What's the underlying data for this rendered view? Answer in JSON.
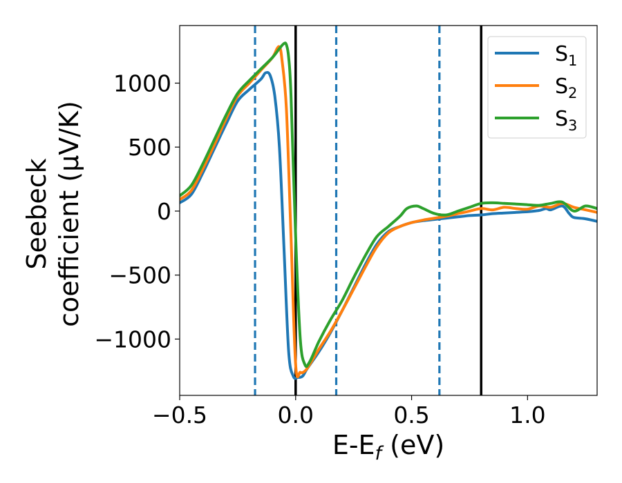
{
  "chart_data": {
    "type": "line",
    "title": "",
    "xlabel": "E-E",
    "xlabel_sub": "f",
    "xlabel_unit": " (eV)",
    "ylabel_line1": "Seebeck",
    "ylabel_line2": "coefficient  (μV/K)",
    "xlim": [
      -0.5,
      1.3
    ],
    "ylim": [
      -1440,
      1450
    ],
    "xticks": [
      -0.5,
      0.0,
      0.5,
      1.0
    ],
    "xtick_labels": [
      "−0.5",
      "0.0",
      "0.5",
      "1.0"
    ],
    "yticks": [
      -1000,
      -500,
      0,
      500,
      1000
    ],
    "ytick_labels": [
      "−1000",
      "−500",
      "0",
      "500",
      "1000"
    ],
    "grid": false,
    "legend_position": "top-right",
    "vlines": [
      {
        "x": -0.175,
        "style": "dashed",
        "color": "#1f77b4"
      },
      {
        "x": 0.0,
        "style": "solid",
        "color": "#000000"
      },
      {
        "x": 0.175,
        "style": "dashed",
        "color": "#1f77b4"
      },
      {
        "x": 0.62,
        "style": "dashed",
        "color": "#1f77b4"
      },
      {
        "x": 0.8,
        "style": "solid",
        "color": "#000000"
      }
    ],
    "series": [
      {
        "name": "S",
        "sub": "1",
        "color": "#1f77b4",
        "points": [
          [
            -0.5,
            65
          ],
          [
            -0.45,
            130
          ],
          [
            -0.4,
            300
          ],
          [
            -0.35,
            490
          ],
          [
            -0.3,
            680
          ],
          [
            -0.25,
            860
          ],
          [
            -0.2,
            950
          ],
          [
            -0.15,
            1030
          ],
          [
            -0.13,
            1080
          ],
          [
            -0.11,
            1060
          ],
          [
            -0.09,
            900
          ],
          [
            -0.07,
            500
          ],
          [
            -0.05,
            -300
          ],
          [
            -0.03,
            -1100
          ],
          [
            -0.01,
            -1290
          ],
          [
            0.01,
            -1300
          ],
          [
            0.03,
            -1290
          ],
          [
            0.05,
            -1230
          ],
          [
            0.1,
            -1100
          ],
          [
            0.15,
            -950
          ],
          [
            0.2,
            -780
          ],
          [
            0.25,
            -600
          ],
          [
            0.3,
            -420
          ],
          [
            0.35,
            -260
          ],
          [
            0.4,
            -160
          ],
          [
            0.45,
            -120
          ],
          [
            0.5,
            -90
          ],
          [
            0.55,
            -75
          ],
          [
            0.6,
            -65
          ],
          [
            0.65,
            -55
          ],
          [
            0.7,
            -45
          ],
          [
            0.75,
            -35
          ],
          [
            0.8,
            -30
          ],
          [
            0.85,
            -20
          ],
          [
            0.9,
            -15
          ],
          [
            0.95,
            -10
          ],
          [
            1.0,
            -5
          ],
          [
            1.05,
            5
          ],
          [
            1.08,
            20
          ],
          [
            1.1,
            10
          ],
          [
            1.15,
            40
          ],
          [
            1.18,
            -20
          ],
          [
            1.2,
            -50
          ],
          [
            1.25,
            -60
          ],
          [
            1.3,
            -80
          ]
        ]
      },
      {
        "name": "S",
        "sub": "2",
        "color": "#ff7f0e",
        "points": [
          [
            -0.5,
            90
          ],
          [
            -0.45,
            160
          ],
          [
            -0.4,
            330
          ],
          [
            -0.35,
            520
          ],
          [
            -0.3,
            720
          ],
          [
            -0.25,
            900
          ],
          [
            -0.2,
            1000
          ],
          [
            -0.15,
            1100
          ],
          [
            -0.1,
            1200
          ],
          [
            -0.08,
            1270
          ],
          [
            -0.07,
            1280
          ],
          [
            -0.06,
            1200
          ],
          [
            -0.04,
            800
          ],
          [
            -0.02,
            -200
          ],
          [
            0.0,
            -1200
          ],
          [
            0.02,
            -1260
          ],
          [
            0.04,
            -1250
          ],
          [
            0.06,
            -1200
          ],
          [
            0.1,
            -1080
          ],
          [
            0.15,
            -940
          ],
          [
            0.2,
            -780
          ],
          [
            0.25,
            -610
          ],
          [
            0.3,
            -440
          ],
          [
            0.35,
            -280
          ],
          [
            0.4,
            -170
          ],
          [
            0.45,
            -120
          ],
          [
            0.5,
            -90
          ],
          [
            0.55,
            -70
          ],
          [
            0.6,
            -55
          ],
          [
            0.65,
            -40
          ],
          [
            0.7,
            -20
          ],
          [
            0.75,
            0
          ],
          [
            0.8,
            20
          ],
          [
            0.85,
            10
          ],
          [
            0.9,
            30
          ],
          [
            0.95,
            20
          ],
          [
            1.0,
            15
          ],
          [
            1.05,
            40
          ],
          [
            1.1,
            30
          ],
          [
            1.15,
            60
          ],
          [
            1.2,
            30
          ],
          [
            1.25,
            10
          ],
          [
            1.3,
            -10
          ]
        ]
      },
      {
        "name": "S",
        "sub": "3",
        "color": "#2ca02c",
        "points": [
          [
            -0.5,
            120
          ],
          [
            -0.45,
            200
          ],
          [
            -0.4,
            370
          ],
          [
            -0.35,
            560
          ],
          [
            -0.3,
            750
          ],
          [
            -0.25,
            920
          ],
          [
            -0.2,
            1020
          ],
          [
            -0.15,
            1110
          ],
          [
            -0.1,
            1200
          ],
          [
            -0.07,
            1270
          ],
          [
            -0.05,
            1310
          ],
          [
            -0.04,
            1300
          ],
          [
            -0.03,
            1200
          ],
          [
            -0.02,
            900
          ],
          [
            0.0,
            -200
          ],
          [
            0.02,
            -1000
          ],
          [
            0.04,
            -1200
          ],
          [
            0.06,
            -1180
          ],
          [
            0.1,
            -1020
          ],
          [
            0.15,
            -850
          ],
          [
            0.2,
            -700
          ],
          [
            0.25,
            -520
          ],
          [
            0.3,
            -350
          ],
          [
            0.35,
            -200
          ],
          [
            0.4,
            -120
          ],
          [
            0.45,
            -40
          ],
          [
            0.48,
            20
          ],
          [
            0.52,
            40
          ],
          [
            0.55,
            20
          ],
          [
            0.6,
            -20
          ],
          [
            0.65,
            -30
          ],
          [
            0.7,
            0
          ],
          [
            0.75,
            30
          ],
          [
            0.8,
            60
          ],
          [
            0.85,
            65
          ],
          [
            0.9,
            60
          ],
          [
            0.95,
            55
          ],
          [
            1.0,
            50
          ],
          [
            1.05,
            45
          ],
          [
            1.1,
            60
          ],
          [
            1.15,
            70
          ],
          [
            1.2,
            0
          ],
          [
            1.25,
            40
          ],
          [
            1.3,
            20
          ]
        ]
      }
    ]
  }
}
